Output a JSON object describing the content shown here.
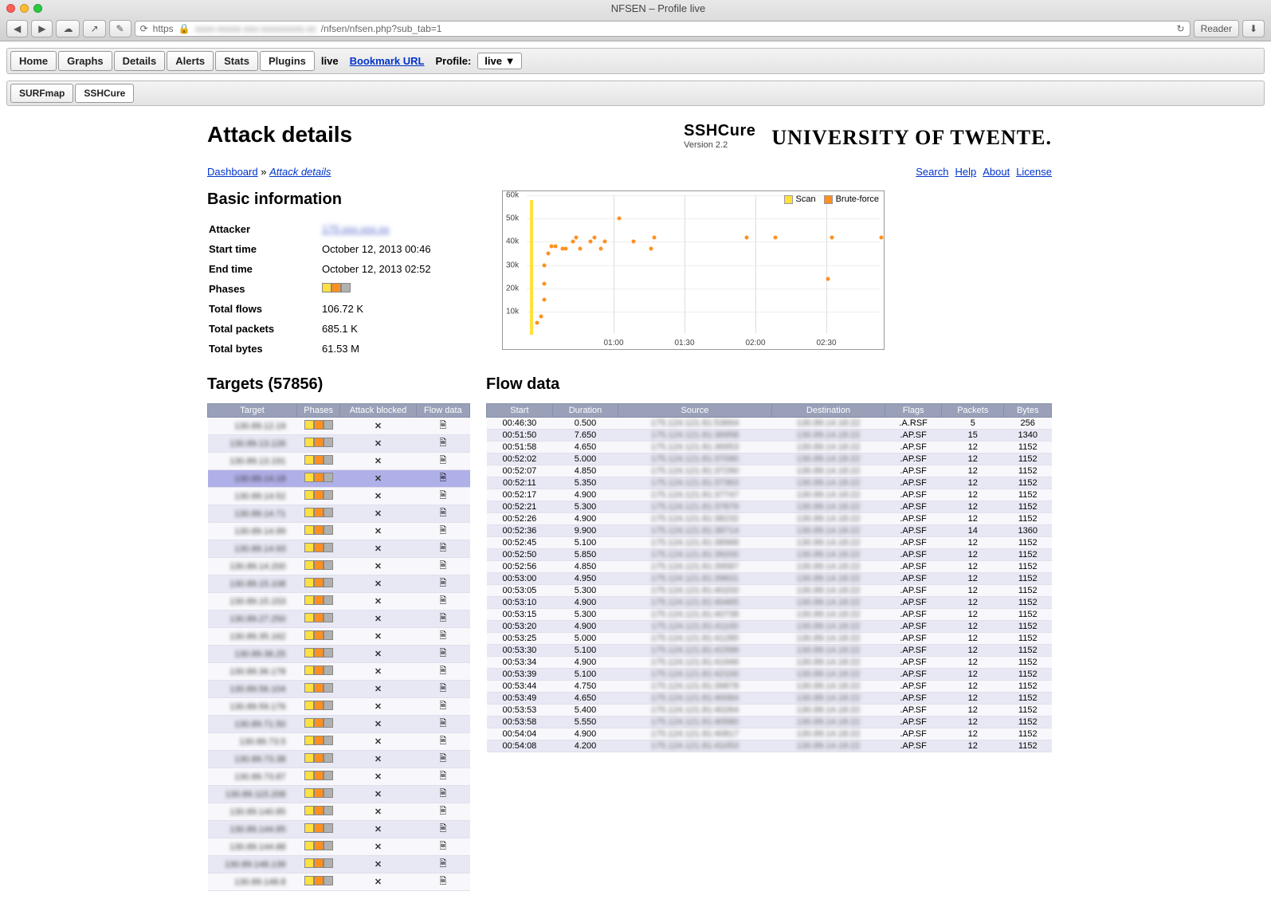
{
  "window": {
    "title": "NFSEN – Profile live"
  },
  "url": {
    "scheme": "https",
    "blurred_host": "xxxx-xxxxx.xxx.xxxxxxxxx.xx",
    "path": "/nfsen/nfsen.php?sub_tab=1",
    "reader": "Reader"
  },
  "nav": {
    "tabs": [
      "Home",
      "Graphs",
      "Details",
      "Alerts",
      "Stats",
      "Plugins"
    ],
    "active_tab": "Plugins",
    "live_label": "live",
    "bookmark": "Bookmark URL",
    "profile_label": "Profile:",
    "profile_value": "live ▼"
  },
  "subnav": {
    "tabs": [
      "SURFmap",
      "SSHCure"
    ],
    "active": "SSHCure"
  },
  "header": {
    "title": "Attack details",
    "brand": "SSHCure",
    "version": "Version 2.2",
    "org": "UNIVERSITY OF TWENTE."
  },
  "breadcrumb": {
    "items": [
      {
        "label": "Dashboard",
        "current": false
      },
      {
        "label": "Attack details",
        "current": true
      }
    ],
    "sep": "»"
  },
  "help_links": [
    "Search",
    "Help",
    "About",
    "License"
  ],
  "basic_info": {
    "title": "Basic information",
    "rows": {
      "Attacker": "175.xxx.xxx.xx",
      "Start time": "October 12, 2013 00:46",
      "End time": "October 12, 2013 02:52",
      "Phases": "",
      "Total flows": "106.72 K",
      "Total packets": "685.1 K",
      "Total bytes": "61.53 M"
    }
  },
  "chart": {
    "legend": [
      {
        "label": "Scan",
        "color": "#ffe040"
      },
      {
        "label": "Brute-force",
        "color": "#ff9020"
      }
    ],
    "y_ticks": [
      10,
      20,
      30,
      40,
      50,
      60
    ],
    "y_unit": "k",
    "y_max": 60,
    "x_ticks": [
      "01:00",
      "01:30",
      "02:00",
      "02:30"
    ],
    "scan_line": {
      "x": 2,
      "y0": 0,
      "y1": 58
    },
    "bf_points": [
      {
        "x": 3,
        "y": 5
      },
      {
        "x": 4,
        "y": 8
      },
      {
        "x": 5,
        "y": 15
      },
      {
        "x": 5,
        "y": 22
      },
      {
        "x": 5,
        "y": 30
      },
      {
        "x": 6,
        "y": 35
      },
      {
        "x": 7,
        "y": 38
      },
      {
        "x": 8,
        "y": 38
      },
      {
        "x": 10,
        "y": 37
      },
      {
        "x": 11,
        "y": 37
      },
      {
        "x": 13,
        "y": 40
      },
      {
        "x": 14,
        "y": 42
      },
      {
        "x": 15,
        "y": 37
      },
      {
        "x": 18,
        "y": 40
      },
      {
        "x": 19,
        "y": 42
      },
      {
        "x": 21,
        "y": 37
      },
      {
        "x": 22,
        "y": 40
      },
      {
        "x": 26,
        "y": 50
      },
      {
        "x": 30,
        "y": 40
      },
      {
        "x": 35,
        "y": 37
      },
      {
        "x": 36,
        "y": 42
      },
      {
        "x": 62,
        "y": 42
      },
      {
        "x": 70,
        "y": 42
      },
      {
        "x": 85,
        "y": 24
      },
      {
        "x": 86,
        "y": 42
      },
      {
        "x": 100,
        "y": 42
      }
    ]
  },
  "targets": {
    "title": "Targets (57856)",
    "columns": [
      "Target",
      "Phases",
      "Attack blocked",
      "Flow data"
    ],
    "selected_index": 3,
    "rows": [
      "130.89.12.19",
      "130.89.13.126",
      "130.89.13.191",
      "130.89.14.18",
      "130.89.14.52",
      "130.89.14.71",
      "130.89.14.99",
      "130.89.14.93",
      "130.89.14.200",
      "130.89.15.108",
      "130.89.15.153",
      "130.89.27.250",
      "130.89.35.162",
      "130.89.36.25",
      "130.89.36.178",
      "130.89.56.104",
      "130.89.59.176",
      "130.89.71.50",
      "130.89.73.5",
      "130.89.73.38",
      "130.89.73.87",
      "130.89.115.208",
      "130.89.140.85",
      "130.89.144.85",
      "130.89.144.88",
      "130.89.148.139",
      "130.89.148.8"
    ]
  },
  "flow": {
    "title": "Flow data",
    "columns": [
      "Start",
      "Duration",
      "Source",
      "Destination",
      "Flags",
      "Packets",
      "Bytes"
    ],
    "rows": [
      [
        "00:46:30",
        "0.500",
        "175.124.121.81:53664",
        "130.89.14.18:22",
        ".A.RSF",
        "5",
        "256"
      ],
      [
        "00:51:50",
        "7.650",
        "175.124.121.81:36958",
        "130.89.14.18:22",
        ".AP.SF",
        "15",
        "1340"
      ],
      [
        "00:51:58",
        "4.650",
        "175.124.121.81:36953",
        "130.89.14.18:22",
        ".AP.SF",
        "12",
        "1152"
      ],
      [
        "00:52:02",
        "5.000",
        "175.124.121.81:37090",
        "130.89.14.18:22",
        ".AP.SF",
        "12",
        "1152"
      ],
      [
        "00:52:07",
        "4.850",
        "175.124.121.81:37290",
        "130.89.14.18:22",
        ".AP.SF",
        "12",
        "1152"
      ],
      [
        "00:52:11",
        "5.350",
        "175.124.121.81:37363",
        "130.89.14.18:22",
        ".AP.SF",
        "12",
        "1152"
      ],
      [
        "00:52:17",
        "4.900",
        "175.124.121.81:37747",
        "130.89.14.18:22",
        ".AP.SF",
        "12",
        "1152"
      ],
      [
        "00:52:21",
        "5.300",
        "175.124.121.81:37879",
        "130.89.14.18:22",
        ".AP.SF",
        "12",
        "1152"
      ],
      [
        "00:52:26",
        "4.900",
        "175.124.121.81:38232",
        "130.89.14.18:22",
        ".AP.SF",
        "12",
        "1152"
      ],
      [
        "00:52:36",
        "9.900",
        "175.124.121.81:38714",
        "130.89.14.18:22",
        ".AP.SF",
        "14",
        "1360"
      ],
      [
        "00:52:45",
        "5.100",
        "175.124.121.81:38968",
        "130.89.14.18:22",
        ".AP.SF",
        "12",
        "1152"
      ],
      [
        "00:52:50",
        "5.850",
        "175.124.121.81:39200",
        "130.89.14.18:22",
        ".AP.SF",
        "12",
        "1152"
      ],
      [
        "00:52:56",
        "4.850",
        "175.124.121.81:39587",
        "130.89.14.18:22",
        ".AP.SF",
        "12",
        "1152"
      ],
      [
        "00:53:00",
        "4.950",
        "175.124.121.81:39831",
        "130.89.14.18:22",
        ".AP.SF",
        "12",
        "1152"
      ],
      [
        "00:53:05",
        "5.300",
        "175.124.121.81:40200",
        "130.89.14.18:22",
        ".AP.SF",
        "12",
        "1152"
      ],
      [
        "00:53:10",
        "4.900",
        "175.124.121.81:40465",
        "130.89.14.18:22",
        ".AP.SF",
        "12",
        "1152"
      ],
      [
        "00:53:15",
        "5.300",
        "175.124.121.81:40738",
        "130.89.14.18:22",
        ".AP.SF",
        "12",
        "1152"
      ],
      [
        "00:53:20",
        "4.900",
        "175.124.121.81:41100",
        "130.89.14.18:22",
        ".AP.SF",
        "12",
        "1152"
      ],
      [
        "00:53:25",
        "5.000",
        "175.124.121.81:41285",
        "130.89.14.18:22",
        ".AP.SF",
        "12",
        "1152"
      ],
      [
        "00:53:30",
        "5.100",
        "175.124.121.81:41599",
        "130.89.14.18:22",
        ".AP.SF",
        "12",
        "1152"
      ],
      [
        "00:53:34",
        "4.900",
        "175.124.121.81:41946",
        "130.89.14.18:22",
        ".AP.SF",
        "12",
        "1152"
      ],
      [
        "00:53:39",
        "5.100",
        "175.124.121.81:42100",
        "130.89.14.18:22",
        ".AP.SF",
        "12",
        "1152"
      ],
      [
        "00:53:44",
        "4.750",
        "175.124.121.81:39878",
        "130.89.14.18:22",
        ".AP.SF",
        "12",
        "1152"
      ],
      [
        "00:53:49",
        "4.650",
        "175.124.121.81:40064",
        "130.89.14.18:22",
        ".AP.SF",
        "12",
        "1152"
      ],
      [
        "00:53:53",
        "5.400",
        "175.124.121.81:40264",
        "130.89.14.18:22",
        ".AP.SF",
        "12",
        "1152"
      ],
      [
        "00:53:58",
        "5.550",
        "175.124.121.81:40580",
        "130.89.14.18:22",
        ".AP.SF",
        "12",
        "1152"
      ],
      [
        "00:54:04",
        "4.900",
        "175.124.121.81:40817",
        "130.89.14.18:22",
        ".AP.SF",
        "12",
        "1152"
      ],
      [
        "00:54:08",
        "4.200",
        "175.124.121.81:41053",
        "130.89.14.18:22",
        ".AP.SF",
        "12",
        "1152"
      ]
    ]
  }
}
